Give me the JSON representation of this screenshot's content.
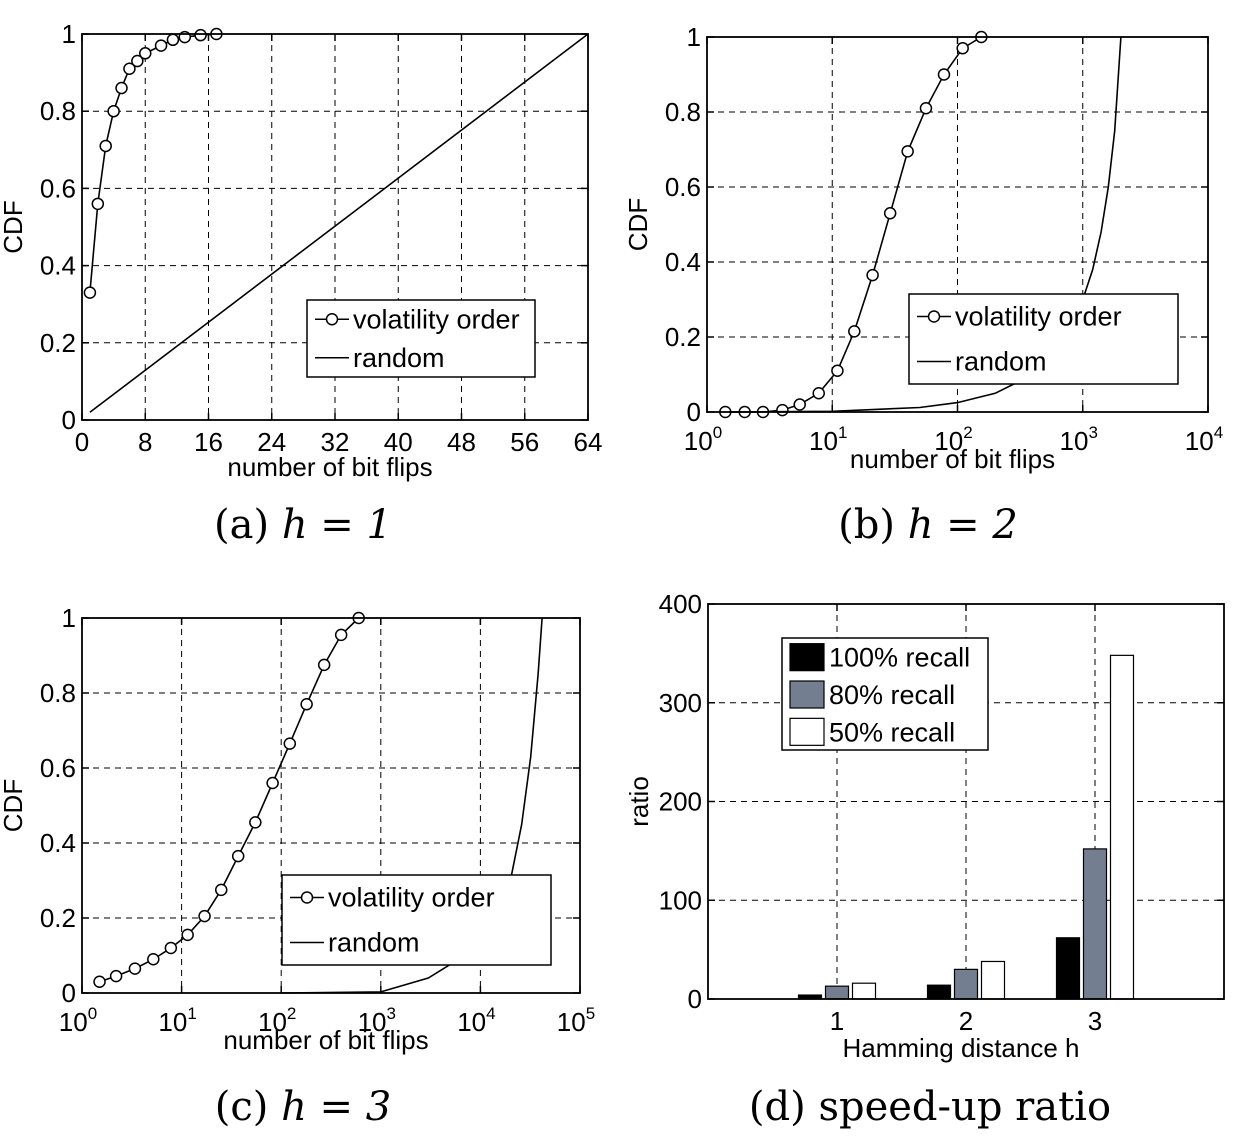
{
  "chart_data": [
    {
      "type": "line",
      "caption_prefix": "(a) ",
      "caption_math": "h = 1",
      "xlabel": "number of bit flips",
      "ylabel": "CDF",
      "xscale": "linear",
      "xlim": [
        0,
        64
      ],
      "ylim": [
        0,
        1
      ],
      "xticks": [
        "0",
        "8",
        "16",
        "24",
        "32",
        "40",
        "48",
        "56",
        "64"
      ],
      "yticks": [
        "0",
        "0.2",
        "0.4",
        "0.6",
        "0.8",
        "1"
      ],
      "grid": true,
      "legend_position": "lower-right",
      "series": [
        {
          "name": "volatility order",
          "marker": "circle",
          "x": [
            1,
            2,
            3,
            4,
            5,
            6,
            7,
            8,
            10,
            11.5,
            13,
            15,
            17
          ],
          "y": [
            0.33,
            0.56,
            0.71,
            0.8,
            0.86,
            0.91,
            0.93,
            0.95,
            0.97,
            0.985,
            0.992,
            0.997,
            1.0
          ]
        },
        {
          "name": "random",
          "marker": "none",
          "x": [
            1,
            64
          ],
          "y": [
            0.02,
            1.0
          ]
        }
      ]
    },
    {
      "type": "line",
      "caption_prefix": "(b) ",
      "caption_math": "h = 2",
      "xlabel": "number of bit flips",
      "ylabel": "CDF",
      "xscale": "log",
      "xlim": [
        1,
        10000
      ],
      "ylim": [
        0,
        1
      ],
      "xticks": [
        {
          "base": "10",
          "exp": "0"
        },
        {
          "base": "10",
          "exp": "1"
        },
        {
          "base": "10",
          "exp": "2"
        },
        {
          "base": "10",
          "exp": "3"
        },
        {
          "base": "10",
          "exp": "4"
        }
      ],
      "yticks": [
        "0",
        "0.2",
        "0.4",
        "0.6",
        "0.8",
        "1"
      ],
      "grid": true,
      "legend_position": "lower-right",
      "series": [
        {
          "name": "volatility order",
          "marker": "circle",
          "x": [
            1.4,
            2,
            2.8,
            4,
            5.5,
            7.8,
            11,
            15,
            21,
            29,
            40,
            56,
            78,
            110,
            155
          ],
          "y": [
            0.0,
            0.0,
            0.0,
            0.005,
            0.02,
            0.05,
            0.11,
            0.215,
            0.365,
            0.53,
            0.695,
            0.81,
            0.9,
            0.97,
            1.0
          ]
        },
        {
          "name": "random",
          "marker": "none",
          "x": [
            1.5,
            10,
            50,
            100,
            200,
            400,
            600,
            800,
            1000,
            1200,
            1400,
            1600,
            1800,
            2016
          ],
          "y": [
            0.0,
            0.002,
            0.012,
            0.025,
            0.05,
            0.1,
            0.16,
            0.23,
            0.3,
            0.38,
            0.48,
            0.6,
            0.75,
            1.0
          ]
        }
      ]
    },
    {
      "type": "line",
      "caption_prefix": "(c) ",
      "caption_math": "h = 3",
      "xlabel": "number of bit flips",
      "ylabel": "CDF",
      "xscale": "log",
      "xlim": [
        1,
        100000
      ],
      "ylim": [
        0,
        1
      ],
      "xticks": [
        {
          "base": "10",
          "exp": "0"
        },
        {
          "base": "10",
          "exp": "1"
        },
        {
          "base": "10",
          "exp": "2"
        },
        {
          "base": "10",
          "exp": "3"
        },
        {
          "base": "10",
          "exp": "4"
        },
        {
          "base": "10",
          "exp": "5"
        }
      ],
      "yticks": [
        "0",
        "0.2",
        "0.4",
        "0.6",
        "0.8",
        "1"
      ],
      "grid": true,
      "legend_position": "lower-right",
      "series": [
        {
          "name": "volatility order",
          "marker": "circle",
          "x": [
            1.5,
            2.2,
            3.4,
            5.2,
            7.8,
            11.5,
            17,
            25,
            37,
            55,
            82,
            122,
            180,
            270,
            400,
            600
          ],
          "y": [
            0.03,
            0.045,
            0.065,
            0.09,
            0.12,
            0.155,
            0.205,
            0.275,
            0.365,
            0.455,
            0.56,
            0.665,
            0.77,
            0.875,
            0.955,
            1.0
          ]
        },
        {
          "name": "random",
          "marker": "none",
          "x": [
            100,
            1000,
            3000,
            8000,
            14000,
            20000,
            26000,
            32000,
            38000,
            41664
          ],
          "y": [
            0.0,
            0.003,
            0.04,
            0.11,
            0.2,
            0.3,
            0.45,
            0.63,
            0.85,
            1.0
          ]
        }
      ]
    },
    {
      "type": "bar",
      "caption_prefix": "(d) ",
      "caption_text": "speed-up ratio",
      "xlabel": "Hamming distance h",
      "ylabel": "ratio",
      "categories": [
        "1",
        "2",
        "3"
      ],
      "ylim": [
        0,
        400
      ],
      "yticks": [
        "0",
        "100",
        "200",
        "300",
        "400"
      ],
      "grid": true,
      "legend_position": "top-left",
      "series": [
        {
          "name": "100% recall",
          "color": "#000000",
          "values": [
            4,
            14,
            62
          ]
        },
        {
          "name": "80% recall",
          "color": "#737f91",
          "values": [
            13,
            30,
            152
          ]
        },
        {
          "name": "50% recall",
          "color": "#ffffff",
          "values": [
            16,
            38,
            348
          ]
        }
      ]
    }
  ]
}
